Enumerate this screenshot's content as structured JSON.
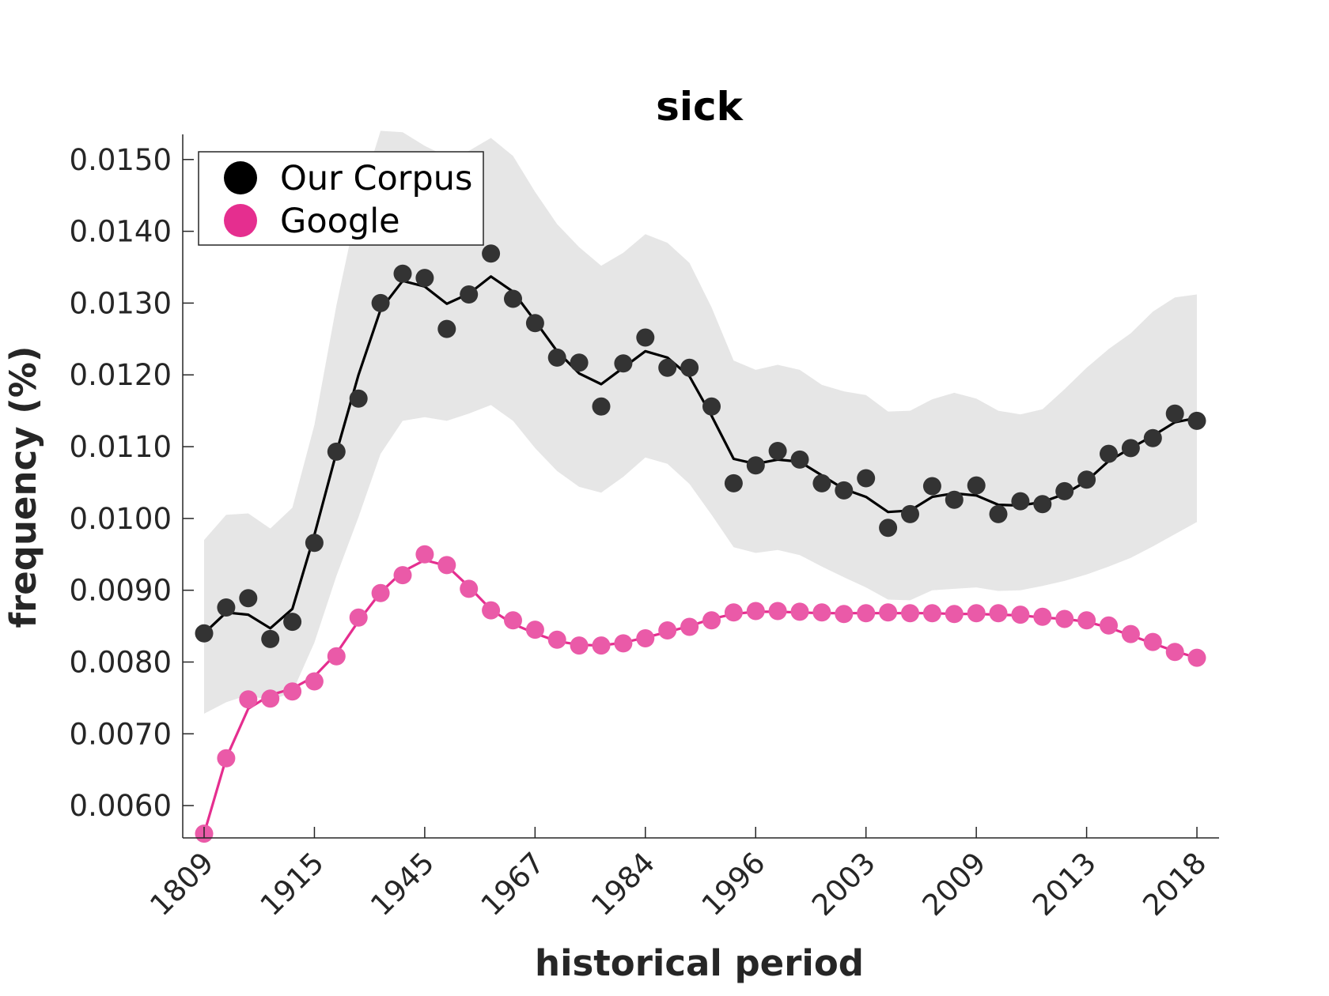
{
  "chart_data": {
    "type": "line",
    "title": "sick",
    "xlabel": "historical period",
    "ylabel": "frequency (%)",
    "ylim": [
      0.00555,
      0.01535
    ],
    "x_tick_labels": [
      "1809",
      "1915",
      "1945",
      "1967",
      "1984",
      "1996",
      "2003",
      "2009",
      "2013",
      "2018"
    ],
    "x_tick_indices": [
      0,
      5,
      10,
      15,
      20,
      25,
      30,
      35,
      40,
      45
    ],
    "y_ticks": [
      0.006,
      0.007,
      0.008,
      0.009,
      0.01,
      0.011,
      0.012,
      0.013,
      0.014,
      0.015
    ],
    "y_tick_labels": [
      "0.0060",
      "0.0070",
      "0.0080",
      "0.0090",
      "0.0100",
      "0.0110",
      "0.0120",
      "0.0130",
      "0.0140",
      "0.0150"
    ],
    "legend_position": "top-left",
    "grid": false,
    "series": [
      {
        "name": "Our Corpus",
        "color": "#000000",
        "point_color": "#333333",
        "points": [
          0.0084,
          0.00876,
          0.00889,
          0.00832,
          0.00856,
          0.00966,
          0.01093,
          0.01167,
          0.013,
          0.01341,
          0.01335,
          0.01264,
          0.01312,
          0.01369,
          0.01306,
          0.01272,
          0.01224,
          0.01217,
          0.01156,
          0.01216,
          0.01252,
          0.0121,
          0.0121,
          0.01156,
          0.01049,
          0.01074,
          0.01094,
          0.01082,
          0.01049,
          0.01039,
          0.01056,
          0.00987,
          0.01006,
          0.01045,
          0.01026,
          0.01046,
          0.01006,
          0.01024,
          0.0102,
          0.01038,
          0.01054,
          0.0109,
          0.01098,
          0.01112,
          0.01146,
          0.01136
        ],
        "line": [
          0.0084,
          0.00869,
          0.00866,
          0.00847,
          0.00874,
          0.00977,
          0.01092,
          0.012,
          0.01291,
          0.01331,
          0.01323,
          0.01299,
          0.01313,
          0.01337,
          0.01316,
          0.01275,
          0.01233,
          0.01202,
          0.01187,
          0.0121,
          0.01233,
          0.01224,
          0.01198,
          0.01143,
          0.01083,
          0.01076,
          0.01082,
          0.01079,
          0.0106,
          0.01041,
          0.0103,
          0.01009,
          0.01011,
          0.0103,
          0.01035,
          0.01032,
          0.01019,
          0.01018,
          0.01023,
          0.01034,
          0.01052,
          0.0108,
          0.01098,
          0.01115,
          0.01134,
          0.0114
        ],
        "band_upper": [
          0.0097,
          0.01005,
          0.01007,
          0.00986,
          0.01015,
          0.0113,
          0.01297,
          0.01441,
          0.0154,
          0.01538,
          0.01519,
          0.01504,
          0.01512,
          0.0153,
          0.01505,
          0.01455,
          0.0141,
          0.01378,
          0.01352,
          0.0137,
          0.01396,
          0.01384,
          0.01356,
          0.01294,
          0.0122,
          0.01207,
          0.01214,
          0.01207,
          0.01186,
          0.01177,
          0.01172,
          0.01149,
          0.0115,
          0.01166,
          0.01175,
          0.01167,
          0.0115,
          0.01145,
          0.01152,
          0.0118,
          0.0121,
          0.01236,
          0.01258,
          0.01288,
          0.01308,
          0.01312
        ],
        "band_lower": [
          0.00728,
          0.00744,
          0.00754,
          0.00746,
          0.00758,
          0.00827,
          0.0092,
          0.01002,
          0.0109,
          0.01136,
          0.01141,
          0.01136,
          0.01146,
          0.01158,
          0.01136,
          0.01098,
          0.01066,
          0.01044,
          0.01036,
          0.01058,
          0.01085,
          0.01076,
          0.01048,
          0.01005,
          0.0096,
          0.00952,
          0.00956,
          0.00949,
          0.00933,
          0.00918,
          0.00904,
          0.00887,
          0.00886,
          0.009,
          0.00902,
          0.00904,
          0.00899,
          0.009,
          0.00906,
          0.00913,
          0.00922,
          0.00933,
          0.00945,
          0.00961,
          0.00978,
          0.00995
        ]
      },
      {
        "name": "Google",
        "color": "#e52e8f",
        "point_color": "#ea5aa8",
        "points": [
          0.00561,
          0.00666,
          0.00748,
          0.00749,
          0.00759,
          0.00773,
          0.00808,
          0.00862,
          0.00896,
          0.00921,
          0.0095,
          0.00935,
          0.00902,
          0.00872,
          0.00858,
          0.00845,
          0.00831,
          0.00823,
          0.00823,
          0.00826,
          0.00833,
          0.00844,
          0.00849,
          0.00858,
          0.00869,
          0.00871,
          0.00871,
          0.0087,
          0.00869,
          0.00867,
          0.00868,
          0.00869,
          0.00868,
          0.00868,
          0.00867,
          0.00868,
          0.00868,
          0.00866,
          0.00863,
          0.0086,
          0.00858,
          0.00851,
          0.00839,
          0.00828,
          0.00814,
          0.00806
        ],
        "line": [
          0.00561,
          0.00666,
          0.00735,
          0.00754,
          0.00763,
          0.0078,
          0.00812,
          0.00857,
          0.00897,
          0.00926,
          0.00942,
          0.00934,
          0.00905,
          0.00873,
          0.00853,
          0.0084,
          0.00829,
          0.00824,
          0.00823,
          0.00827,
          0.00834,
          0.00842,
          0.0085,
          0.0086,
          0.00867,
          0.0087,
          0.0087,
          0.00869,
          0.00868,
          0.00868,
          0.00868,
          0.00868,
          0.00868,
          0.00868,
          0.00867,
          0.00867,
          0.00866,
          0.00865,
          0.00862,
          0.0086,
          0.00856,
          0.00848,
          0.00837,
          0.00826,
          0.00815,
          0.00806
        ]
      }
    ]
  }
}
